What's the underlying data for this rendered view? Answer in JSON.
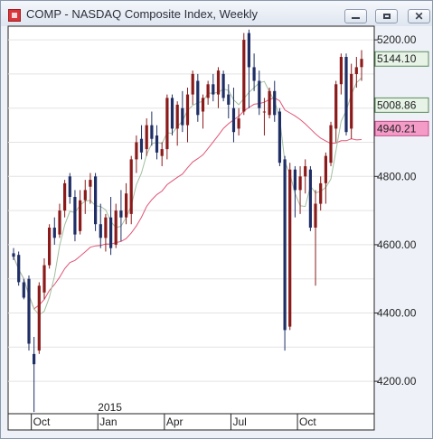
{
  "window": {
    "title": "COMP - NASDAQ Composite Index, Weekly"
  },
  "chart_data": {
    "type": "candlestick",
    "title": "COMP - NASDAQ Composite Index, Weekly",
    "timeframe": "Weekly",
    "ylim": [
      4105,
      5240
    ],
    "y_ticks": [
      4200,
      4400,
      4600,
      4800,
      5000,
      5200
    ],
    "y_tick_labels": [
      "4200.00",
      "4400.00",
      "4600.00",
      "4800.00",
      "5000.00",
      "5200.00"
    ],
    "x_tick_labels": [
      {
        "label": "Oct",
        "index": 4
      },
      {
        "label": "Jan",
        "index": 17
      },
      {
        "label": "Apr",
        "index": 30
      },
      {
        "label": "Jul",
        "index": 43
      },
      {
        "label": "Oct",
        "index": 56
      }
    ],
    "year_marker": {
      "label": "2015",
      "index": 17
    },
    "grid": true,
    "colors": {
      "up": "#8b1a1a",
      "down": "#1f2f66",
      "ma_fast": "#9fbf9f",
      "ma_slow": "#e05577",
      "grid": "#e3e3e3",
      "label_last": "#e6f3e6",
      "label_ma_fast": "#e6f3e6",
      "label_ma_slow": "#f59bc8"
    },
    "value_labels": [
      {
        "text": "5144.10",
        "value": 5144.1,
        "role": "last-price"
      },
      {
        "text": "5008.86",
        "value": 5008.86,
        "role": "ma-fast"
      },
      {
        "text": "4940.21",
        "value": 4940.21,
        "role": "ma-slow"
      }
    ],
    "candles": [
      [
        4575,
        4590,
        4555,
        4565
      ],
      [
        4570,
        4580,
        4480,
        4490
      ],
      [
        4490,
        4500,
        4440,
        4445
      ],
      [
        4500,
        4510,
        4290,
        4310
      ],
      [
        4280,
        4330,
        4110,
        4250
      ],
      [
        4290,
        4490,
        4280,
        4480
      ],
      [
        4460,
        4560,
        4440,
        4540
      ],
      [
        4540,
        4660,
        4530,
        4650
      ],
      [
        4650,
        4680,
        4600,
        4620
      ],
      [
        4630,
        4720,
        4620,
        4700
      ],
      [
        4700,
        4790,
        4680,
        4780
      ],
      [
        4800,
        4810,
        4720,
        4740
      ],
      [
        4740,
        4760,
        4610,
        4630
      ],
      [
        4640,
        4760,
        4630,
        4730
      ],
      [
        4730,
        4790,
        4690,
        4760
      ],
      [
        4770,
        4810,
        4720,
        4790
      ],
      [
        4800,
        4810,
        4640,
        4660
      ],
      [
        4660,
        4720,
        4590,
        4620
      ],
      [
        4620,
        4690,
        4580,
        4680
      ],
      [
        4680,
        4740,
        4570,
        4590
      ],
      [
        4600,
        4720,
        4590,
        4700
      ],
      [
        4700,
        4760,
        4610,
        4680
      ],
      [
        4680,
        4780,
        4660,
        4750
      ],
      [
        4690,
        4860,
        4660,
        4850
      ],
      [
        4850,
        4920,
        4810,
        4900
      ],
      [
        4910,
        4950,
        4850,
        4870
      ],
      [
        4880,
        4970,
        4860,
        4950
      ],
      [
        4950,
        4990,
        4890,
        4910
      ],
      [
        4920,
        4950,
        4850,
        4870
      ],
      [
        4860,
        4900,
        4830,
        4880
      ],
      [
        4880,
        5040,
        4850,
        5030
      ],
      [
        5030,
        5040,
        4920,
        4940
      ],
      [
        4940,
        5020,
        4890,
        5010
      ],
      [
        5000,
        5050,
        4930,
        4950
      ],
      [
        4950,
        5060,
        4900,
        5040
      ],
      [
        5040,
        5110,
        5010,
        5100
      ],
      [
        5080,
        5100,
        4960,
        4980
      ],
      [
        4990,
        5040,
        4940,
        5030
      ],
      [
        5030,
        5080,
        5010,
        5070
      ],
      [
        5070,
        5100,
        5020,
        5040
      ],
      [
        5040,
        5120,
        5000,
        5110
      ],
      [
        5100,
        5110,
        5020,
        5030
      ],
      [
        5040,
        5070,
        4970,
        5010
      ],
      [
        5000,
        5060,
        4900,
        4930
      ],
      [
        4940,
        5000,
        4920,
        4970
      ],
      [
        4990,
        5220,
        4980,
        5200
      ],
      [
        5220,
        5230,
        5000,
        5120
      ],
      [
        5120,
        5160,
        5050,
        5080
      ],
      [
        5080,
        5110,
        4980,
        5000
      ],
      [
        4990,
        5030,
        4920,
        4990
      ],
      [
        4980,
        5060,
        4970,
        5050
      ],
      [
        5050,
        5080,
        4960,
        4980
      ],
      [
        4990,
        5000,
        4830,
        4840
      ],
      [
        4850,
        4860,
        4290,
        4350
      ],
      [
        4360,
        4840,
        4350,
        4820
      ],
      [
        4820,
        4830,
        4680,
        4760
      ],
      [
        4760,
        4830,
        4690,
        4800
      ],
      [
        4800,
        4850,
        4750,
        4830
      ],
      [
        4820,
        4830,
        4640,
        4650
      ],
      [
        4650,
        4760,
        4480,
        4720
      ],
      [
        4720,
        4800,
        4700,
        4780
      ],
      [
        4780,
        4870,
        4720,
        4860
      ],
      [
        4840,
        4960,
        4830,
        4950
      ],
      [
        4940,
        5080,
        4900,
        5070
      ],
      [
        5070,
        5160,
        5040,
        5150
      ],
      [
        5150,
        5160,
        4920,
        4930
      ],
      [
        4940,
        5130,
        4910,
        5100
      ],
      [
        5100,
        5150,
        5060,
        5120
      ],
      [
        5120,
        5170,
        5080,
        5144.1
      ]
    ]
  }
}
